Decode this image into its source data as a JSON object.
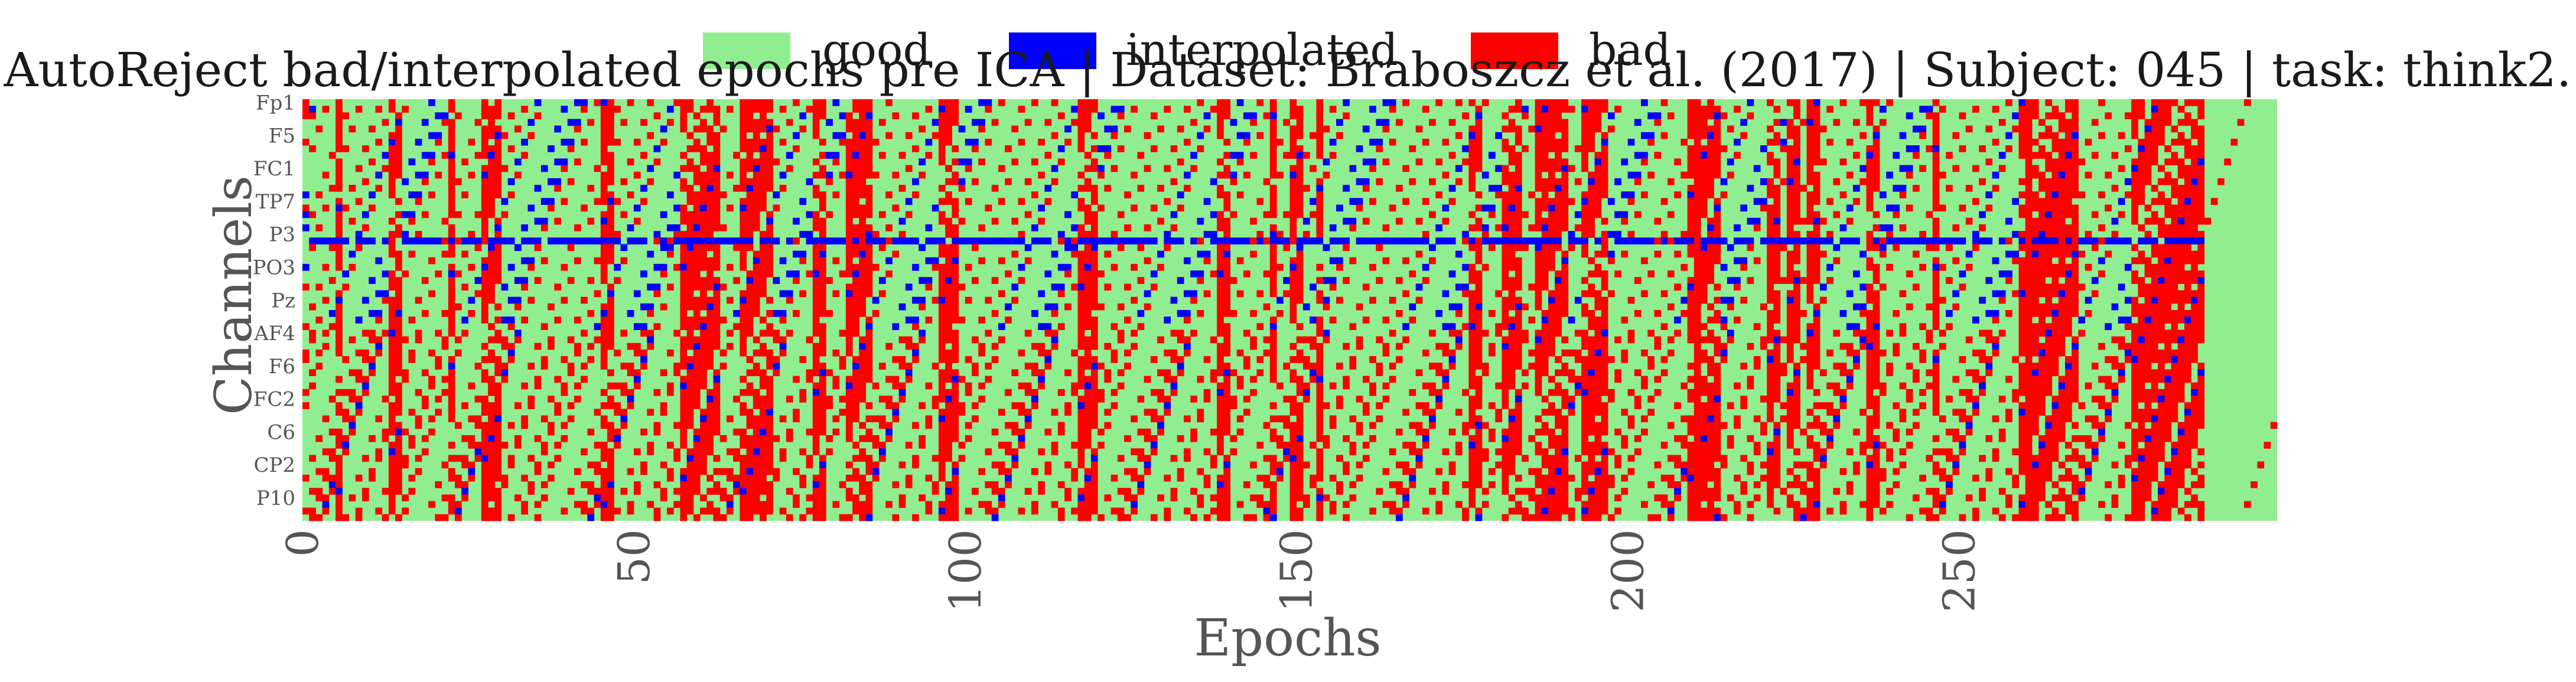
{
  "chart_data": {
    "type": "heatmap",
    "title": "AutoReject bad/interpolated epochs pre ICA | Dataset: Braboszcz et al. (2017) | Subject: 045 | task: think2.",
    "xlabel": "Epochs",
    "ylabel": "Channels",
    "xlim": [
      0,
      298
    ],
    "n_epochs": 298,
    "n_channels": 64,
    "xticks": [
      0,
      50,
      100,
      150,
      200,
      250
    ],
    "ytick_labels": [
      "Fp1",
      "F5",
      "FC1",
      "TP7",
      "P3",
      "PO3",
      "Pz",
      "AF4",
      "F6",
      "FC2",
      "C6",
      "CP2",
      "P10"
    ],
    "ytick_channel_index": [
      0,
      5,
      10,
      15,
      20,
      25,
      30,
      35,
      40,
      45,
      50,
      55,
      60
    ],
    "legend": [
      {
        "name": "good",
        "color": "#90ee90"
      },
      {
        "name": "interpolated",
        "color": "#0000ff"
      },
      {
        "name": "bad",
        "color": "#ff0000"
      }
    ],
    "legend_placement": "top-center",
    "grid": false,
    "cell_codes": {
      "good": 0,
      "interpolated": 1,
      "bad": 2
    },
    "fully_bad_epochs": [
      210,
      260
    ],
    "largely_bad_epochs": [
      5,
      13,
      14,
      22,
      27,
      28,
      29,
      45,
      46,
      57,
      58,
      59,
      60,
      61,
      62,
      66,
      67,
      68,
      69,
      70,
      77,
      78,
      82,
      83,
      84,
      85,
      96,
      97,
      98,
      117,
      118,
      119,
      138,
      139,
      146,
      149,
      150,
      153,
      176,
      177,
      181,
      182,
      183,
      186,
      187,
      188,
      189,
      190,
      193,
      194,
      195,
      196,
      209,
      211,
      212,
      213,
      221,
      222,
      224,
      225,
      227,
      228,
      236,
      237,
      246,
      259,
      261,
      262,
      263,
      264,
      265,
      266,
      267,
      276,
      277,
      278,
      279,
      280,
      281,
      282,
      283,
      284,
      285,
      286
    ],
    "mostly_interpolated_channels": [
      21
    ]
  }
}
